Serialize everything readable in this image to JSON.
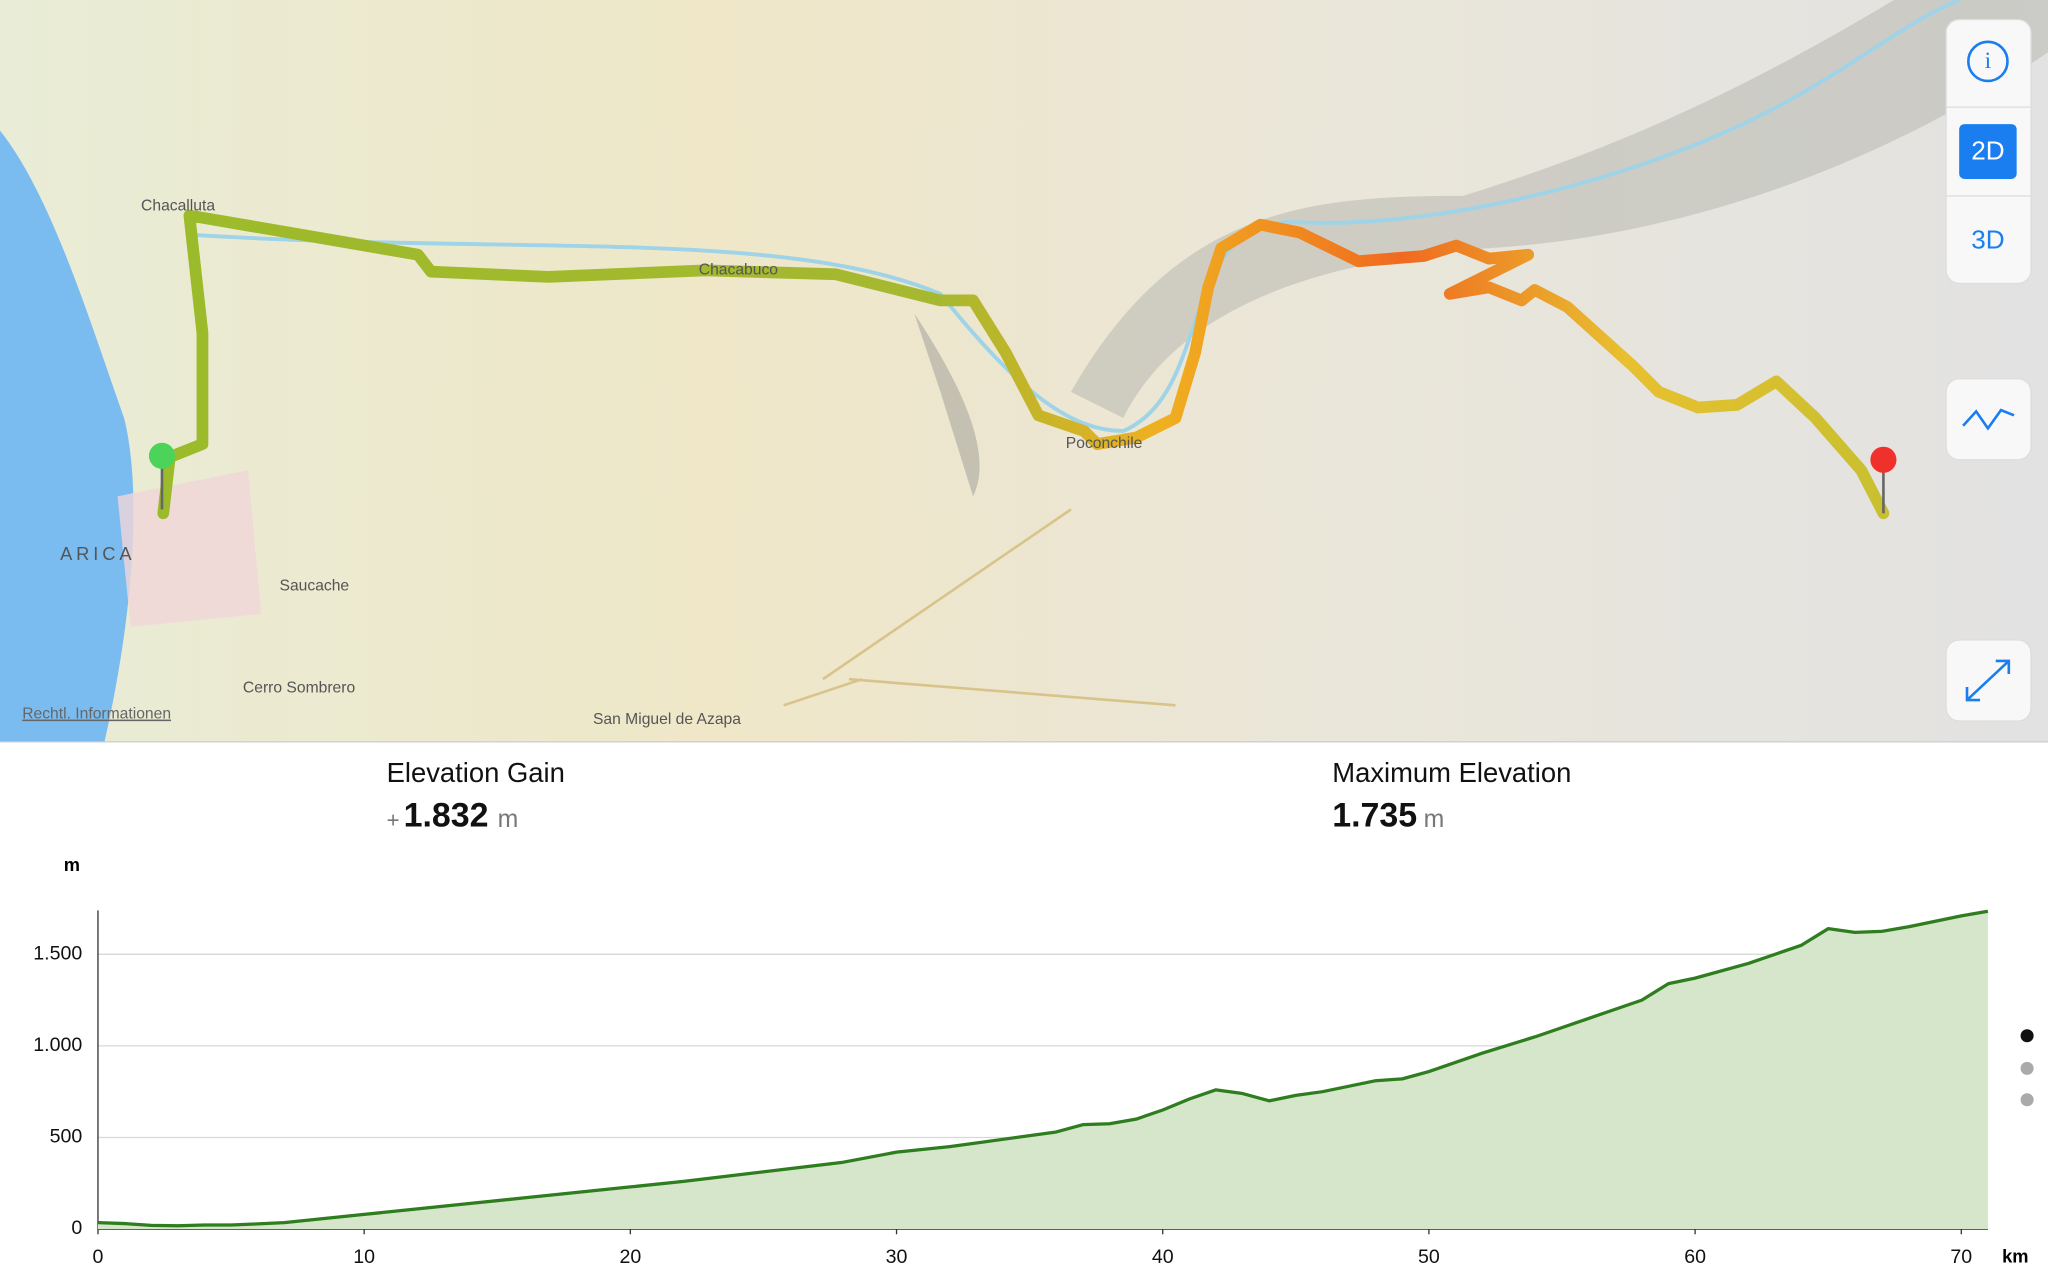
{
  "map": {
    "labels": [
      "Chacalluta",
      "Chacabuco",
      "Poconchile",
      "ARICA",
      "Saucache",
      "Cerro Sombrero",
      "San Miguel de Azapa"
    ],
    "legal": "Rechtl. Informationen",
    "buttons": {
      "info": "i",
      "mode_2d": "2D",
      "mode_3d": "3D"
    }
  },
  "stats": {
    "elevation_gain": {
      "label": "Elevation Gain",
      "sign": "+",
      "value": "1.832",
      "unit": "m"
    },
    "maximum_elevation": {
      "label": "Maximum Elevation",
      "value": "1.735",
      "unit": "m"
    }
  },
  "chart_data": {
    "type": "area",
    "y_unit": "m",
    "x_unit": "km",
    "color": "#2e7d1e",
    "x": [
      0,
      1,
      2,
      3,
      4,
      5,
      6,
      7,
      8,
      9,
      10,
      12,
      14,
      16,
      18,
      20,
      22,
      24,
      26,
      28,
      30,
      32,
      34,
      36,
      37,
      38,
      39,
      40,
      41,
      42,
      43,
      44,
      45,
      46,
      47,
      48,
      49,
      50,
      52,
      54,
      56,
      58,
      59,
      60,
      62,
      64,
      65,
      66,
      67,
      68,
      69,
      70,
      71
    ],
    "values": [
      35,
      30,
      20,
      18,
      22,
      22,
      28,
      35,
      50,
      65,
      80,
      110,
      140,
      170,
      200,
      230,
      260,
      295,
      330,
      365,
      420,
      450,
      490,
      530,
      570,
      575,
      600,
      650,
      710,
      760,
      740,
      700,
      730,
      750,
      780,
      810,
      820,
      860,
      960,
      1050,
      1150,
      1250,
      1340,
      1370,
      1450,
      1550,
      1640,
      1620,
      1625,
      1650,
      1680,
      1710,
      1735
    ],
    "xlim": [
      0,
      71
    ],
    "ylim": [
      0,
      1740
    ],
    "xticks": [
      0,
      10,
      20,
      30,
      40,
      50,
      60,
      70
    ],
    "yticks": [
      0,
      500,
      {
        "value": 1000,
        "label": "1.000"
      },
      {
        "value": 1500,
        "label": "1.500"
      }
    ],
    "grid": true
  }
}
